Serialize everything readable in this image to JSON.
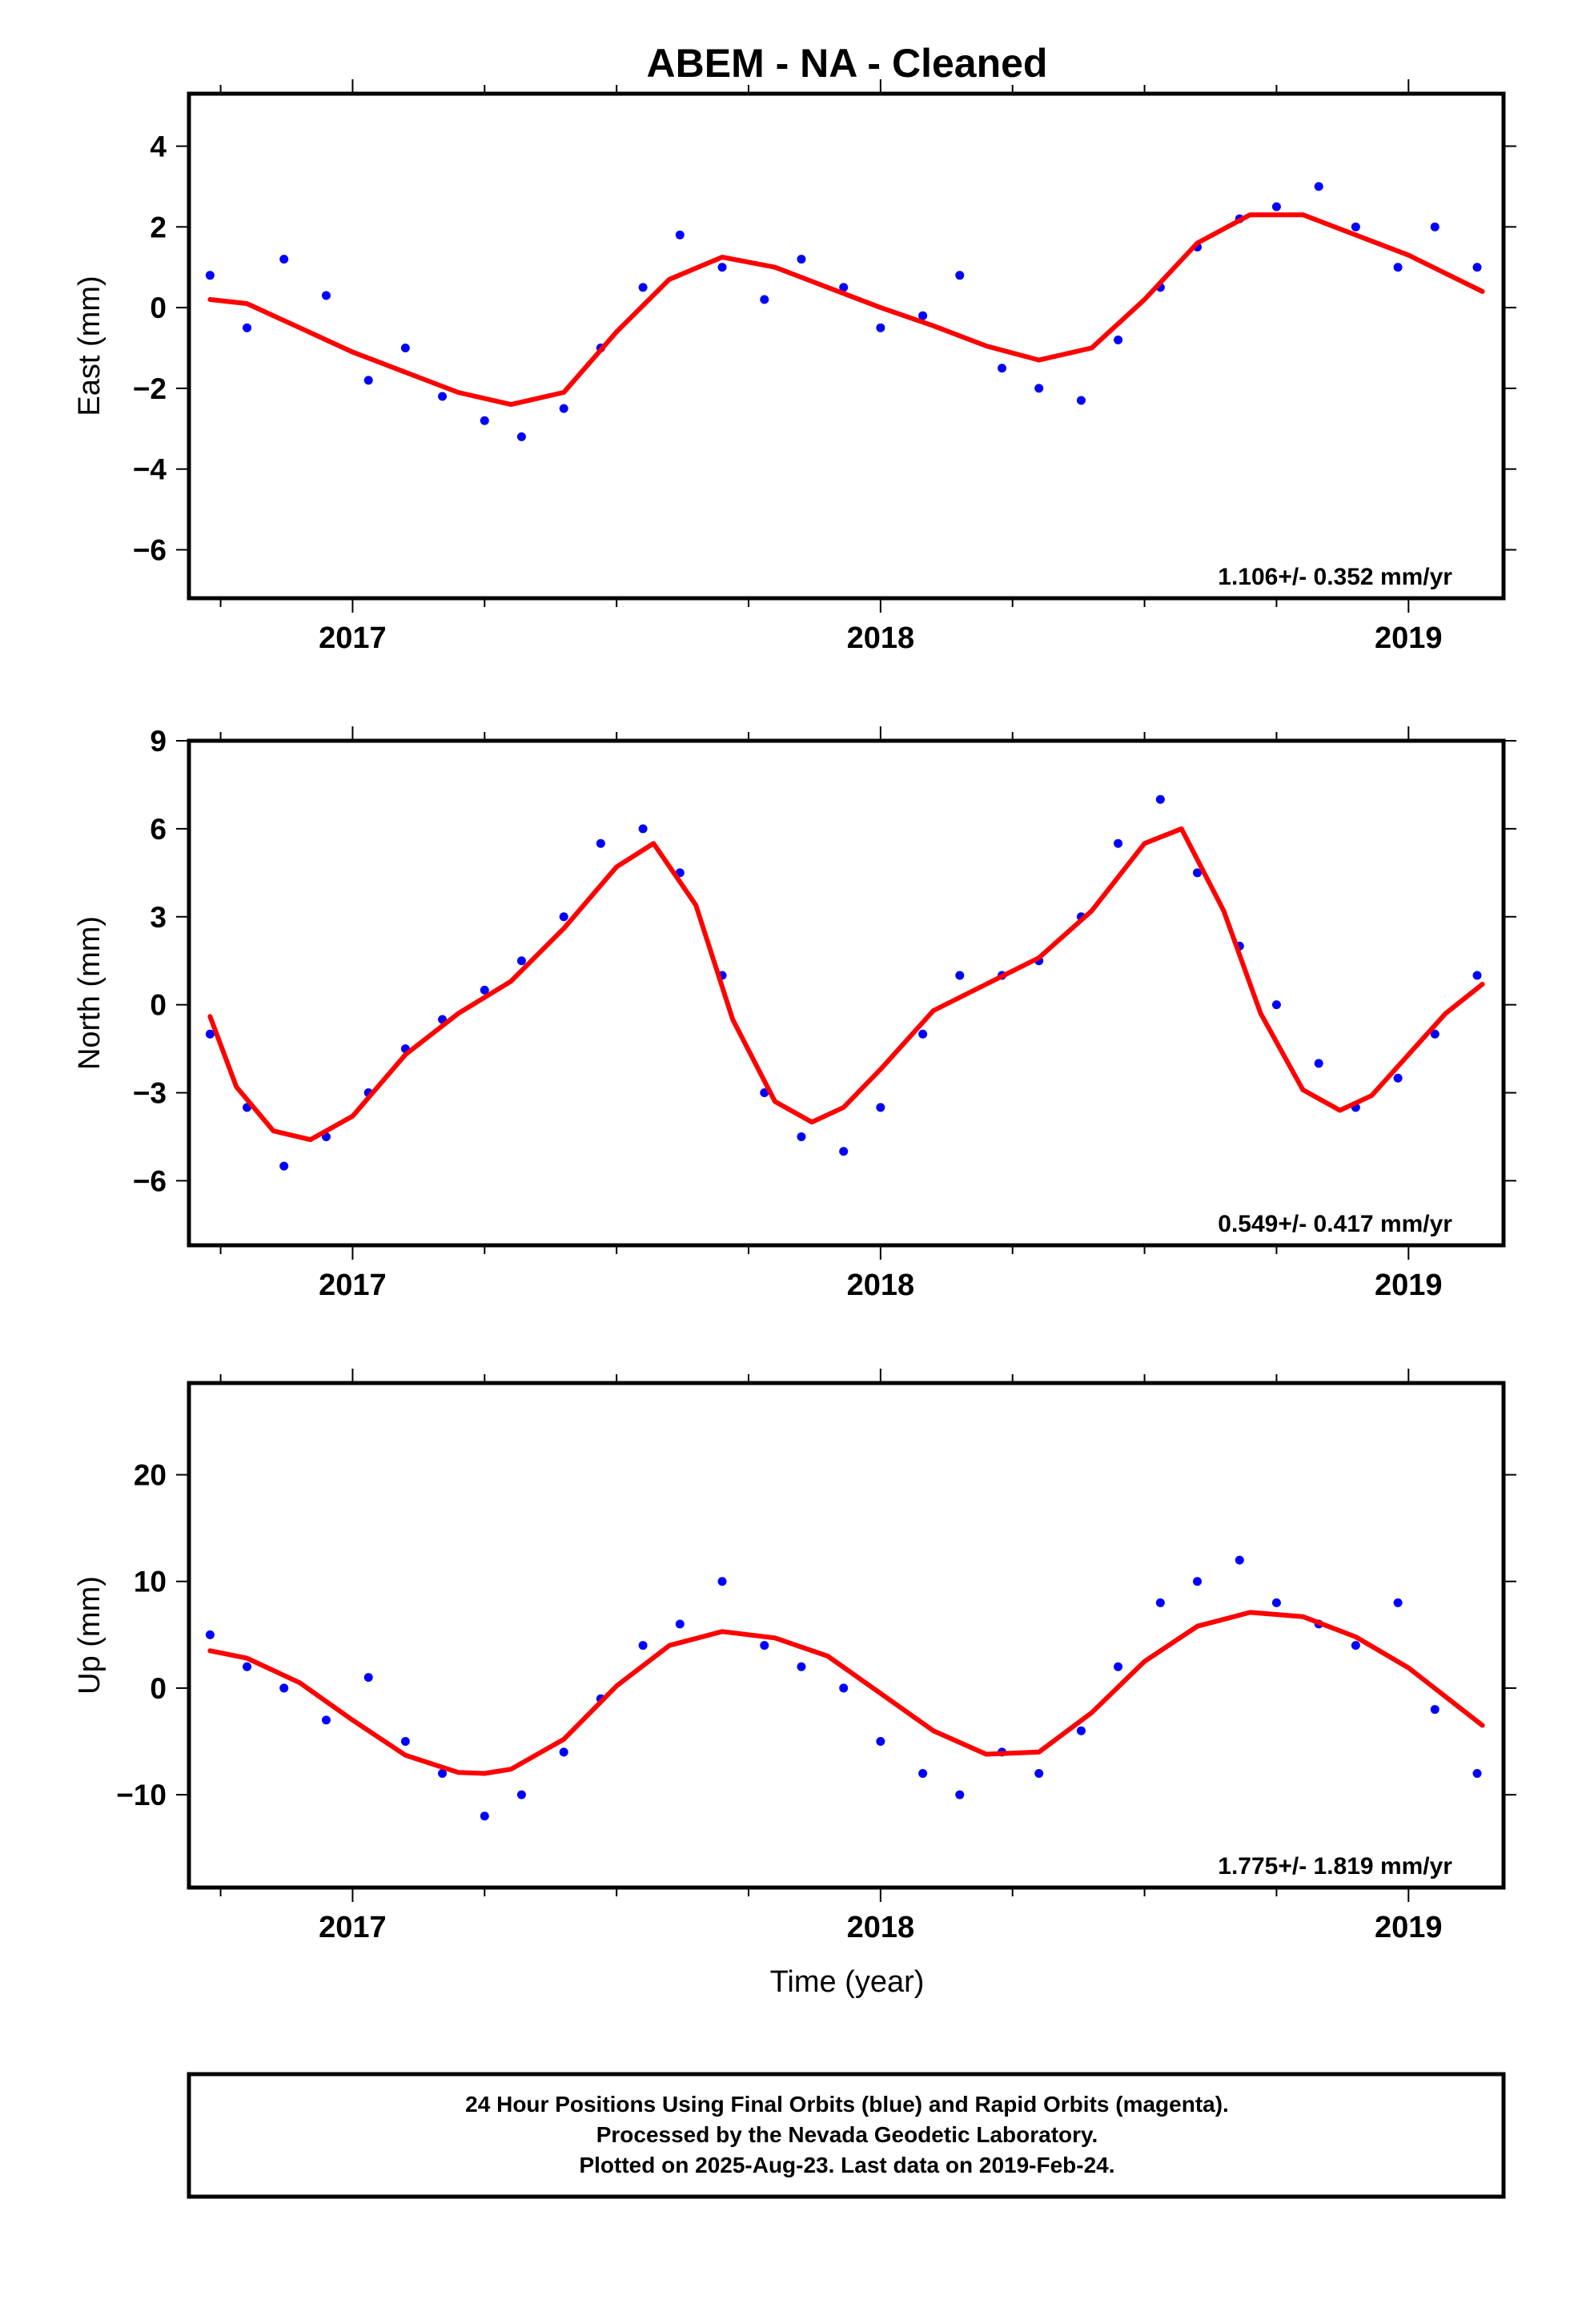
{
  "title": "ABEM  - NA - Cleaned",
  "xlabel": "Time (year)",
  "footer": {
    "line1": "24 Hour Positions Using Final Orbits (blue) and Rapid Orbits (magenta).",
    "line2": "Processed by the Nevada Geodetic Laboratory.",
    "line3": "Plotted on 2025-Aug-23. Last data on 2019-Feb-24."
  },
  "colors": {
    "points": "#0000ff",
    "fit": "#ff0000",
    "frame": "#000000"
  },
  "chart_data": [
    {
      "type": "scatter",
      "ylabel": "East (mm)",
      "rate_label": "1.106+/- 0.352 mm/yr",
      "xlim": [
        2016.69,
        2019.18
      ],
      "ylim": [
        -7.2,
        5.3
      ],
      "xticks": [
        2017,
        2018,
        2019
      ],
      "yticks": [
        -6,
        -4,
        -2,
        0,
        2,
        4
      ],
      "series": [
        {
          "role": "points",
          "x": [
            2016.73,
            2016.8,
            2016.87,
            2016.95,
            2017.03,
            2017.1,
            2017.17,
            2017.25,
            2017.32,
            2017.4,
            2017.47,
            2017.55,
            2017.62,
            2017.7,
            2017.78,
            2017.85,
            2017.93,
            2018.0,
            2018.08,
            2018.15,
            2018.23,
            2018.3,
            2018.38,
            2018.45,
            2018.53,
            2018.6,
            2018.68,
            2018.75,
            2018.83,
            2018.9,
            2018.98,
            2019.05,
            2019.13
          ],
          "y": [
            0.8,
            -0.5,
            1.2,
            0.3,
            -1.8,
            -1.0,
            -2.2,
            -2.8,
            -3.2,
            -2.5,
            -1.0,
            0.5,
            1.8,
            1.0,
            0.2,
            1.2,
            0.5,
            -0.5,
            -0.2,
            0.8,
            -1.5,
            -2.0,
            -2.3,
            -0.8,
            0.5,
            1.5,
            2.2,
            2.5,
            3.0,
            2.0,
            1.0,
            2.0,
            1.0
          ]
        },
        {
          "role": "fit",
          "x": [
            2016.73,
            2016.8,
            2016.9,
            2017.0,
            2017.1,
            2017.2,
            2017.3,
            2017.4,
            2017.5,
            2017.6,
            2017.7,
            2017.8,
            2017.9,
            2018.0,
            2018.1,
            2018.2,
            2018.3,
            2018.4,
            2018.5,
            2018.6,
            2018.7,
            2018.8,
            2018.9,
            2019.0,
            2019.14
          ],
          "y": [
            0.2,
            0.1,
            -0.5,
            -1.1,
            -1.6,
            -2.1,
            -2.4,
            -2.1,
            -0.6,
            0.7,
            1.25,
            1.0,
            0.5,
            0.0,
            -0.45,
            -0.95,
            -1.3,
            -1.0,
            0.2,
            1.6,
            2.3,
            2.3,
            1.8,
            1.3,
            0.4
          ]
        }
      ]
    },
    {
      "type": "scatter",
      "ylabel": "North (mm)",
      "rate_label": "0.549+/- 0.417 mm/yr",
      "xlim": [
        2016.69,
        2019.18
      ],
      "ylim": [
        -8.2,
        9.0
      ],
      "xticks": [
        2017,
        2018,
        2019
      ],
      "yticks": [
        -6,
        -3,
        0,
        3,
        6,
        9
      ],
      "series": [
        {
          "role": "points",
          "x": [
            2016.73,
            2016.8,
            2016.87,
            2016.95,
            2017.03,
            2017.1,
            2017.17,
            2017.25,
            2017.32,
            2017.4,
            2017.47,
            2017.55,
            2017.62,
            2017.7,
            2017.78,
            2017.85,
            2017.93,
            2018.0,
            2018.08,
            2018.15,
            2018.23,
            2018.3,
            2018.38,
            2018.45,
            2018.53,
            2018.6,
            2018.68,
            2018.75,
            2018.83,
            2018.9,
            2018.98,
            2019.05,
            2019.13
          ],
          "y": [
            -1.0,
            -3.5,
            -5.5,
            -4.5,
            -3.0,
            -1.5,
            -0.5,
            0.5,
            1.5,
            3.0,
            5.5,
            6.0,
            4.5,
            1.0,
            -3.0,
            -4.5,
            -5.0,
            -3.5,
            -1.0,
            1.0,
            1.0,
            1.5,
            3.0,
            5.5,
            7.0,
            4.5,
            2.0,
            0.0,
            -2.0,
            -3.5,
            -2.5,
            -1.0,
            1.0
          ]
        },
        {
          "role": "fit",
          "x": [
            2016.73,
            2016.78,
            2016.85,
            2016.92,
            2017.0,
            2017.1,
            2017.2,
            2017.3,
            2017.4,
            2017.5,
            2017.57,
            2017.65,
            2017.72,
            2017.8,
            2017.87,
            2017.93,
            2018.0,
            2018.1,
            2018.2,
            2018.3,
            2018.4,
            2018.5,
            2018.57,
            2018.65,
            2018.72,
            2018.8,
            2018.87,
            2018.93,
            2019.0,
            2019.07,
            2019.14
          ],
          "y": [
            -0.4,
            -2.8,
            -4.3,
            -4.6,
            -3.8,
            -1.7,
            -0.3,
            0.8,
            2.6,
            4.7,
            5.5,
            3.4,
            -0.5,
            -3.3,
            -4.0,
            -3.5,
            -2.2,
            -0.2,
            0.7,
            1.6,
            3.2,
            5.5,
            6.0,
            3.2,
            -0.3,
            -2.9,
            -3.6,
            -3.1,
            -1.7,
            -0.3,
            0.7
          ]
        }
      ]
    },
    {
      "type": "scatter",
      "ylabel": "Up (mm)",
      "rate_label": "1.775+/- 1.819 mm/yr",
      "xlim": [
        2016.69,
        2019.18
      ],
      "ylim": [
        -18.7,
        28.6
      ],
      "xticks": [
        2017,
        2018,
        2019
      ],
      "yticks": [
        -10,
        0,
        10,
        20
      ],
      "series": [
        {
          "role": "points",
          "x": [
            2016.73,
            2016.8,
            2016.87,
            2016.95,
            2017.03,
            2017.1,
            2017.17,
            2017.25,
            2017.32,
            2017.4,
            2017.47,
            2017.55,
            2017.62,
            2017.7,
            2017.78,
            2017.85,
            2017.93,
            2018.0,
            2018.08,
            2018.15,
            2018.23,
            2018.3,
            2018.38,
            2018.45,
            2018.53,
            2018.6,
            2018.68,
            2018.75,
            2018.83,
            2018.9,
            2018.98,
            2019.05,
            2019.13
          ],
          "y": [
            5.0,
            2.0,
            0.0,
            -3.0,
            1.0,
            -5.0,
            -8.0,
            -12.0,
            -10.0,
            -6.0,
            -1.0,
            4.0,
            6.0,
            10.0,
            4.0,
            2.0,
            0.0,
            -5.0,
            -8.0,
            -10.0,
            -6.0,
            -8.0,
            -4.0,
            2.0,
            8.0,
            10.0,
            12.0,
            8.0,
            6.0,
            4.0,
            8.0,
            -2.0,
            -8.0
          ]
        },
        {
          "role": "fit",
          "x": [
            2016.73,
            2016.8,
            2016.9,
            2017.0,
            2017.1,
            2017.2,
            2017.25,
            2017.3,
            2017.4,
            2017.5,
            2017.6,
            2017.7,
            2017.8,
            2017.9,
            2018.0,
            2018.1,
            2018.2,
            2018.3,
            2018.4,
            2018.5,
            2018.6,
            2018.7,
            2018.8,
            2018.9,
            2019.0,
            2019.14
          ],
          "y": [
            3.5,
            2.8,
            0.5,
            -3.0,
            -6.3,
            -7.9,
            -8.0,
            -7.6,
            -4.8,
            0.2,
            4.0,
            5.3,
            4.7,
            3.0,
            -0.5,
            -4.0,
            -6.2,
            -6.0,
            -2.3,
            2.5,
            5.8,
            7.1,
            6.7,
            4.8,
            1.9,
            -3.5
          ]
        }
      ]
    }
  ]
}
